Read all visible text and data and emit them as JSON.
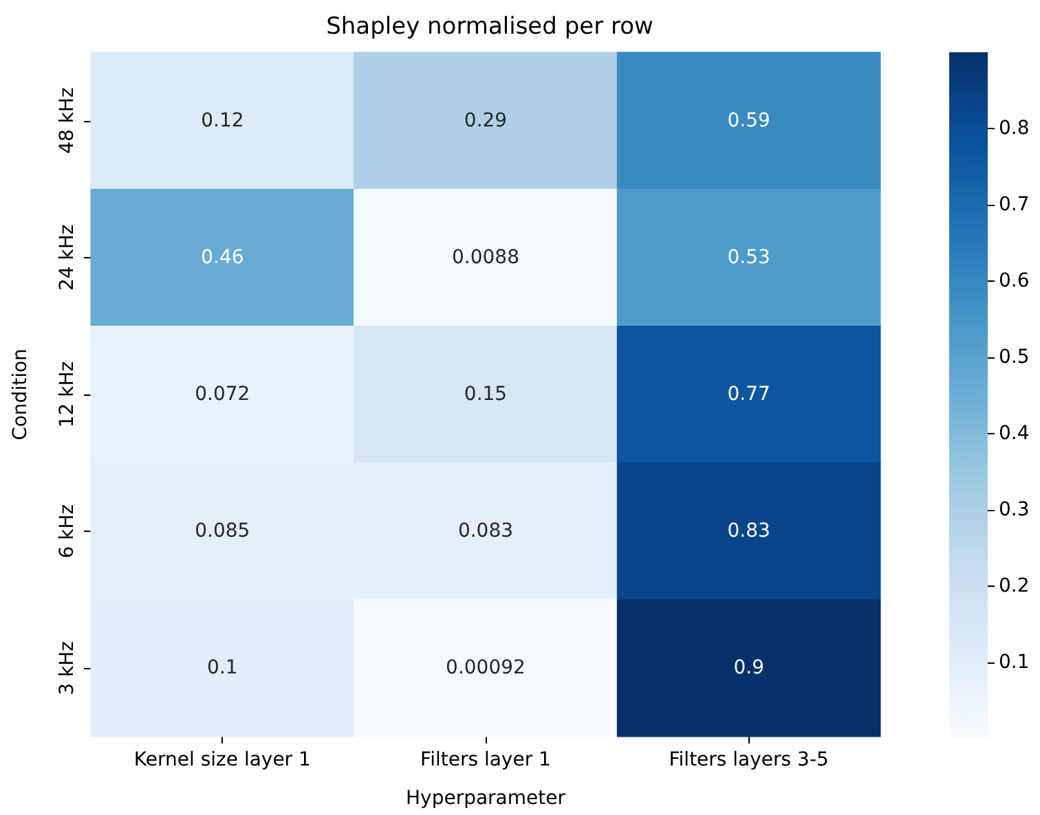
{
  "chart_data": {
    "type": "heatmap",
    "title": "Shapley normalised per row",
    "xlabel": "Hyperparameter",
    "ylabel": "Condition",
    "categories": [
      "Kernel size layer 1",
      "Filters layer 1",
      "Filters layers 3-5"
    ],
    "y_categories": [
      "48 kHz",
      "24 kHz",
      "12 kHz",
      "6 kHz",
      "3 kHz"
    ],
    "cells": [
      [
        0.12,
        0.29,
        0.59
      ],
      [
        0.46,
        0.0088,
        0.53
      ],
      [
        0.072,
        0.15,
        0.77
      ],
      [
        0.085,
        0.083,
        0.83
      ],
      [
        0.1,
        0.00092,
        0.9
      ]
    ],
    "data_labels": true,
    "clim": [
      0.00092,
      0.9
    ],
    "cticks": [
      0.1,
      0.2,
      0.3,
      0.4,
      0.5,
      0.6,
      0.7,
      0.8
    ]
  }
}
